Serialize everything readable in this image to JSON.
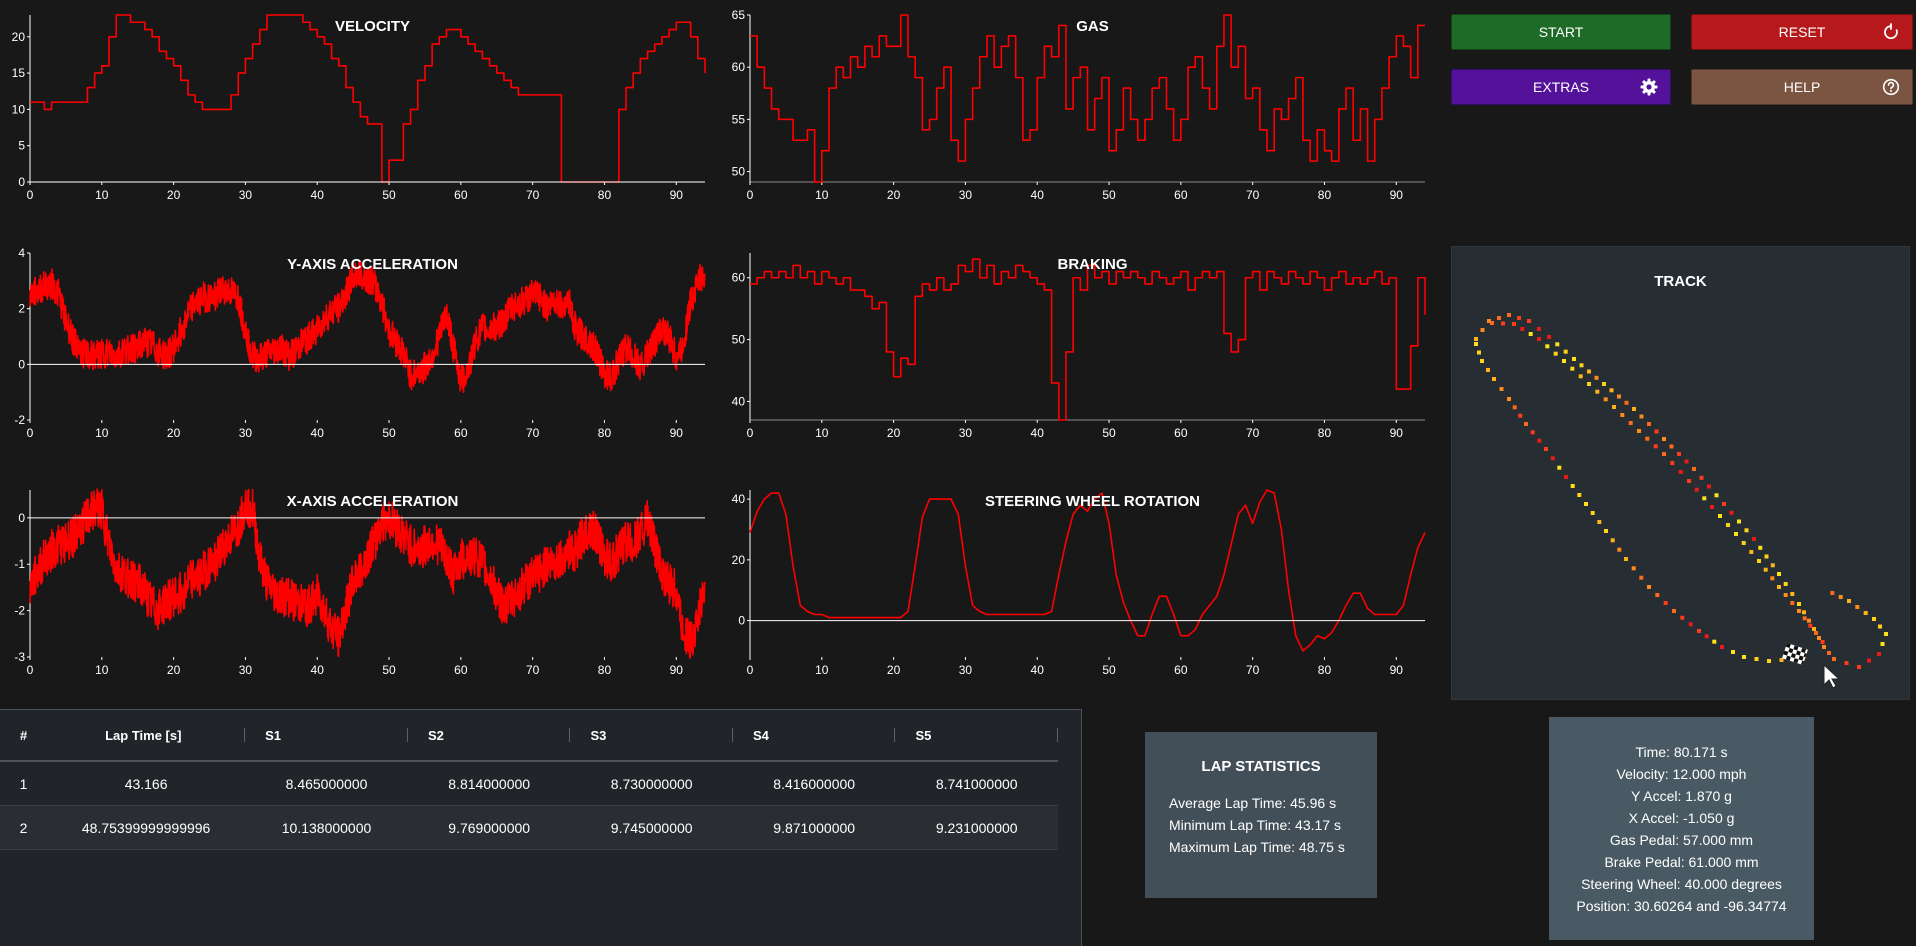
{
  "colors": {
    "background": "#181818",
    "series": "#ff0000",
    "axis": "#ffffff",
    "start": "#1e6b27",
    "reset": "#b5191b",
    "extras": "#54129a",
    "help": "#7b5442"
  },
  "buttons": {
    "start": "START",
    "reset": "RESET",
    "extras": "EXTRAS",
    "help": "HELP",
    "reset_icon": "reload-icon",
    "extras_icon": "gear-icon",
    "help_icon": "question-circle-icon"
  },
  "chart_data": [
    {
      "id": "velocity",
      "type": "line",
      "title": "VELOCITY",
      "xlim": [
        0,
        94
      ],
      "ylim": [
        0,
        23
      ],
      "xticks": [
        0,
        10,
        20,
        30,
        40,
        50,
        60,
        70,
        80,
        90
      ],
      "yticks": [
        0,
        5,
        10,
        15,
        20
      ],
      "zero_line": true,
      "step": true,
      "noise": 0,
      "x": [
        0,
        1,
        2,
        3,
        4,
        5,
        6,
        7,
        8,
        9,
        10,
        11,
        12,
        13,
        14,
        15,
        16,
        17,
        18,
        19,
        20,
        21,
        22,
        23,
        24,
        25,
        26,
        27,
        28,
        29,
        30,
        31,
        32,
        33,
        34,
        35,
        36,
        37,
        38,
        39,
        40,
        41,
        42,
        43,
        44,
        45,
        46,
        47,
        48,
        49,
        50,
        51,
        52,
        53,
        54,
        55,
        56,
        57,
        58,
        59,
        60,
        61,
        62,
        63,
        64,
        65,
        66,
        67,
        68,
        69,
        70,
        71,
        72,
        73,
        74,
        75,
        76,
        77,
        78,
        79,
        80,
        81,
        82,
        83,
        84,
        85,
        86,
        87,
        88,
        89,
        90,
        91,
        92,
        93,
        94
      ],
      "y": [
        11,
        11,
        10,
        11,
        11,
        11,
        11,
        11,
        13,
        15,
        16,
        20,
        23,
        23,
        22,
        22,
        21,
        20,
        18,
        17,
        16,
        14,
        12,
        11,
        10,
        10,
        10,
        10,
        12,
        15,
        17,
        19,
        21,
        23,
        23,
        23,
        23,
        23,
        22,
        21,
        20,
        19,
        17,
        16,
        13,
        11,
        9,
        8,
        8,
        0,
        3,
        3,
        8,
        10,
        14,
        16,
        19,
        20,
        21,
        21,
        20,
        19,
        18,
        17,
        16,
        15,
        14,
        13,
        12,
        12,
        12,
        12,
        12,
        12,
        0,
        0,
        0,
        0,
        0,
        0,
        0,
        0,
        10,
        13,
        15,
        17,
        18,
        19,
        20,
        21,
        22,
        22,
        20,
        17,
        15
      ]
    },
    {
      "id": "gas",
      "type": "line",
      "title": "GAS",
      "xlim": [
        0,
        94
      ],
      "ylim": [
        49,
        65
      ],
      "xticks": [
        0,
        10,
        20,
        30,
        40,
        50,
        60,
        70,
        80,
        90
      ],
      "yticks": [
        50,
        55,
        60,
        65
      ],
      "zero_line": false,
      "step": true,
      "noise": 0,
      "x": [
        0,
        1,
        2,
        3,
        4,
        5,
        6,
        7,
        8,
        9,
        10,
        11,
        12,
        13,
        14,
        15,
        16,
        17,
        18,
        19,
        20,
        21,
        22,
        23,
        24,
        25,
        26,
        27,
        28,
        29,
        30,
        31,
        32,
        33,
        34,
        35,
        36,
        37,
        38,
        39,
        40,
        41,
        42,
        43,
        44,
        45,
        46,
        47,
        48,
        49,
        50,
        51,
        52,
        53,
        54,
        55,
        56,
        57,
        58,
        59,
        60,
        61,
        62,
        63,
        64,
        65,
        66,
        67,
        68,
        69,
        70,
        71,
        72,
        73,
        74,
        75,
        76,
        77,
        78,
        79,
        80,
        81,
        82,
        83,
        84,
        85,
        86,
        87,
        88,
        89,
        90,
        91,
        92,
        93,
        94
      ],
      "y": [
        63,
        60,
        58,
        56,
        55,
        55,
        53,
        53,
        54,
        49,
        52,
        58,
        60,
        59,
        61,
        60,
        62,
        61,
        63,
        62,
        62,
        65,
        61,
        59,
        54,
        55,
        58,
        60,
        53,
        51,
        55,
        58,
        61,
        63,
        60,
        62,
        63,
        59,
        53,
        54,
        59,
        62,
        61,
        64,
        56,
        59,
        60,
        54,
        57,
        59,
        52,
        54,
        58,
        55,
        53,
        55,
        58,
        59,
        56,
        53,
        55,
        60,
        61,
        58,
        56,
        62,
        65,
        60,
        62,
        57,
        58,
        54,
        52,
        56,
        55,
        57,
        59,
        53,
        51,
        54,
        52,
        51,
        56,
        58,
        53,
        56,
        51,
        55,
        58,
        61,
        63,
        62,
        59,
        64,
        64
      ]
    },
    {
      "id": "y-accel",
      "type": "line",
      "title": "Y-AXIS ACCELERATION",
      "xlim": [
        0,
        94
      ],
      "ylim": [
        -2,
        4
      ],
      "xticks": [
        0,
        10,
        20,
        30,
        40,
        50,
        60,
        70,
        80,
        90
      ],
      "yticks": [
        -2,
        0,
        2,
        4
      ],
      "zero_line": true,
      "step": false,
      "noise": 0.55,
      "x": [
        0,
        1,
        2,
        3,
        4,
        5,
        6,
        7,
        8,
        9,
        10,
        11,
        12,
        13,
        14,
        15,
        16,
        17,
        18,
        19,
        20,
        21,
        22,
        23,
        24,
        25,
        26,
        27,
        28,
        29,
        30,
        31,
        32,
        33,
        34,
        35,
        36,
        37,
        38,
        39,
        40,
        41,
        42,
        43,
        44,
        45,
        46,
        47,
        48,
        49,
        50,
        51,
        52,
        53,
        54,
        55,
        56,
        57,
        58,
        59,
        60,
        61,
        62,
        63,
        64,
        65,
        66,
        67,
        68,
        69,
        70,
        71,
        72,
        73,
        74,
        75,
        76,
        77,
        78,
        79,
        80,
        81,
        82,
        83,
        84,
        85,
        86,
        87,
        88,
        89,
        90,
        91,
        92,
        93,
        94
      ],
      "y": [
        2.5,
        2.6,
        2.8,
        2.9,
        2.5,
        1.6,
        0.9,
        0.5,
        0.3,
        0.3,
        0.4,
        0.4,
        0.3,
        0.5,
        0.6,
        0.6,
        0.8,
        0.7,
        0.4,
        0.3,
        0.6,
        1.2,
        1.8,
        2.2,
        2.4,
        2.4,
        2.5,
        2.7,
        2.6,
        2.4,
        1.2,
        0.3,
        0.2,
        0.4,
        0.5,
        0.6,
        0.3,
        0.5,
        0.8,
        1.0,
        1.3,
        1.6,
        1.9,
        2.0,
        2.6,
        3.1,
        3.3,
        3.1,
        2.9,
        2.2,
        1.2,
        0.8,
        0.4,
        -0.4,
        -0.3,
        -0.1,
        0.3,
        1.0,
        1.8,
        0.6,
        -0.6,
        -0.2,
        0.8,
        1.3,
        1.2,
        1.4,
        1.6,
        2.0,
        2.2,
        2.3,
        2.5,
        2.4,
        2.0,
        2.3,
        2.2,
        2.3,
        1.3,
        1.0,
        0.8,
        0.4,
        -0.3,
        -0.5,
        0.2,
        0.6,
        0.3,
        -0.1,
        0.4,
        0.8,
        1.3,
        1.0,
        0.2,
        0.8,
        2.2,
        3.0,
        3.2
      ]
    },
    {
      "id": "braking",
      "type": "line",
      "title": "BRAKING",
      "xlim": [
        0,
        94
      ],
      "ylim": [
        37,
        64
      ],
      "xticks": [
        0,
        10,
        20,
        30,
        40,
        50,
        60,
        70,
        80,
        90
      ],
      "yticks": [
        40,
        50,
        60
      ],
      "zero_line": false,
      "step": true,
      "noise": 0,
      "x": [
        0,
        1,
        2,
        3,
        4,
        5,
        6,
        7,
        8,
        9,
        10,
        11,
        12,
        13,
        14,
        15,
        16,
        17,
        18,
        19,
        20,
        21,
        22,
        23,
        24,
        25,
        26,
        27,
        28,
        29,
        30,
        31,
        32,
        33,
        34,
        35,
        36,
        37,
        38,
        39,
        40,
        41,
        42,
        43,
        44,
        45,
        46,
        47,
        48,
        49,
        50,
        51,
        52,
        53,
        54,
        55,
        56,
        57,
        58,
        59,
        60,
        61,
        62,
        63,
        64,
        65,
        66,
        67,
        68,
        69,
        70,
        71,
        72,
        73,
        74,
        75,
        76,
        77,
        78,
        79,
        80,
        81,
        82,
        83,
        84,
        85,
        86,
        87,
        88,
        89,
        90,
        91,
        92,
        93,
        94
      ],
      "y": [
        59,
        60,
        61,
        60,
        61,
        60,
        62,
        60,
        61,
        59,
        61,
        60,
        59,
        60,
        58,
        58,
        57,
        55,
        56,
        48,
        44,
        47,
        46,
        57,
        59,
        58,
        60,
        58,
        59,
        62,
        61,
        63,
        60,
        62,
        59,
        61,
        60,
        62,
        61,
        60,
        59,
        58,
        43,
        37,
        48,
        60,
        58,
        62,
        60,
        61,
        59,
        61,
        60,
        61,
        60,
        59,
        61,
        60,
        59,
        60,
        61,
        58,
        60,
        61,
        60,
        61,
        51,
        48,
        50,
        60,
        61,
        58,
        61,
        60,
        59,
        61,
        60,
        59,
        61,
        60,
        58,
        60,
        61,
        59,
        60,
        59,
        60,
        61,
        59,
        60,
        42,
        42,
        49,
        60,
        54
      ]
    },
    {
      "id": "x-accel",
      "type": "line",
      "title": "X-AXIS ACCELERATION",
      "xlim": [
        0,
        94
      ],
      "ylim": [
        -3,
        0.6
      ],
      "xticks": [
        0,
        10,
        20,
        30,
        40,
        50,
        60,
        70,
        80,
        90
      ],
      "yticks": [
        -3,
        -2,
        -1,
        0
      ],
      "zero_line": true,
      "step": false,
      "noise": 0.45,
      "x": [
        0,
        1,
        2,
        3,
        4,
        5,
        6,
        7,
        8,
        9,
        10,
        11,
        12,
        13,
        14,
        15,
        16,
        17,
        18,
        19,
        20,
        21,
        22,
        23,
        24,
        25,
        26,
        27,
        28,
        29,
        30,
        31,
        32,
        33,
        34,
        35,
        36,
        37,
        38,
        39,
        40,
        41,
        42,
        43,
        44,
        45,
        46,
        47,
        48,
        49,
        50,
        51,
        52,
        53,
        54,
        55,
        56,
        57,
        58,
        59,
        60,
        61,
        62,
        63,
        64,
        65,
        66,
        67,
        68,
        69,
        70,
        71,
        72,
        73,
        74,
        75,
        76,
        77,
        78,
        79,
        80,
        81,
        82,
        83,
        84,
        85,
        86,
        87,
        88,
        89,
        90,
        91,
        92,
        93,
        94
      ],
      "y": [
        -1.5,
        -1.2,
        -0.9,
        -0.7,
        -0.6,
        -0.5,
        -0.4,
        -0.2,
        0.0,
        0.2,
        0.2,
        -0.6,
        -1.1,
        -1.2,
        -1.3,
        -1.4,
        -1.6,
        -1.9,
        -2.0,
        -1.8,
        -1.7,
        -1.6,
        -1.4,
        -1.3,
        -1.2,
        -1.0,
        -0.9,
        -0.6,
        -0.4,
        -0.2,
        0.3,
        0.2,
        -0.9,
        -1.4,
        -1.6,
        -1.7,
        -1.7,
        -1.8,
        -1.9,
        -1.9,
        -1.6,
        -2.0,
        -2.4,
        -2.6,
        -1.9,
        -1.4,
        -1.1,
        -0.8,
        -0.5,
        -0.1,
        0.0,
        -0.2,
        -0.4,
        -0.6,
        -0.7,
        -0.6,
        -0.5,
        -0.6,
        -0.9,
        -1.2,
        -0.9,
        -0.8,
        -0.8,
        -1.0,
        -1.3,
        -1.6,
        -1.9,
        -1.8,
        -1.6,
        -1.4,
        -1.3,
        -1.2,
        -1.0,
        -1.0,
        -0.8,
        -0.7,
        -0.7,
        -0.4,
        -0.2,
        -0.4,
        -0.8,
        -1.0,
        -0.7,
        -0.5,
        -0.6,
        -0.3,
        0.0,
        -0.6,
        -1.2,
        -1.4,
        -1.6,
        -2.4,
        -2.7,
        -2.2,
        -1.4
      ]
    },
    {
      "id": "steering",
      "type": "line",
      "title": "STEERING WHEEL ROTATION",
      "xlim": [
        0,
        94
      ],
      "ylim": [
        -12,
        43
      ],
      "xticks": [
        0,
        10,
        20,
        30,
        40,
        50,
        60,
        70,
        80,
        90
      ],
      "yticks": [
        0,
        20,
        40
      ],
      "zero_line": true,
      "step": false,
      "noise": 0,
      "x": [
        0,
        1,
        2,
        3,
        4,
        5,
        6,
        7,
        8,
        9,
        10,
        11,
        12,
        13,
        14,
        15,
        16,
        17,
        18,
        19,
        20,
        21,
        22,
        23,
        24,
        25,
        26,
        27,
        28,
        29,
        30,
        31,
        32,
        33,
        34,
        35,
        36,
        37,
        38,
        39,
        40,
        41,
        42,
        43,
        44,
        45,
        46,
        47,
        48,
        49,
        50,
        51,
        52,
        53,
        54,
        55,
        56,
        57,
        58,
        59,
        60,
        61,
        62,
        63,
        64,
        65,
        66,
        67,
        68,
        69,
        70,
        71,
        72,
        73,
        74,
        75,
        76,
        77,
        78,
        79,
        80,
        81,
        82,
        83,
        84,
        85,
        86,
        87,
        88,
        89,
        90,
        91,
        92,
        93,
        94
      ],
      "y": [
        29,
        36,
        40,
        42,
        42,
        35,
        18,
        5,
        3,
        2,
        2,
        1,
        1,
        1,
        1,
        1,
        1,
        1,
        1,
        1,
        1,
        1,
        3,
        18,
        34,
        40,
        40,
        40,
        40,
        35,
        18,
        5,
        3,
        2,
        2,
        2,
        2,
        2,
        2,
        2,
        2,
        2,
        3,
        15,
        26,
        35,
        38,
        36,
        40,
        42,
        32,
        15,
        6,
        0,
        -5,
        -5,
        2,
        8,
        8,
        2,
        -5,
        -5,
        -3,
        2,
        5,
        8,
        15,
        25,
        35,
        38,
        32,
        39,
        43,
        42,
        30,
        10,
        -5,
        -10,
        -8,
        -5,
        -6,
        -4,
        0,
        5,
        9,
        9,
        4,
        2,
        2,
        2,
        2,
        5,
        15,
        24,
        29
      ]
    }
  ],
  "track": {
    "title": "TRACK",
    "start_flag_icon": "checkered-flag-icon",
    "car_icon": "cursor-arrow-icon"
  },
  "laps": {
    "headers": [
      "#",
      "Lap Time [s]",
      "S1",
      "S2",
      "S3",
      "S4",
      "S5"
    ],
    "rows": [
      [
        "1",
        "43.166",
        "8.465000000",
        "8.814000000",
        "8.730000000",
        "8.416000000",
        "8.741000000"
      ],
      [
        "2",
        "48.75399999999996",
        "10.138000000",
        "9.769000000",
        "9.745000000",
        "9.871000000",
        "9.231000000"
      ]
    ]
  },
  "stats": {
    "title": "LAP STATISTICS",
    "average": "Average Lap Time: 45.96 s",
    "minimum": "Minimum Lap Time: 43.17 s",
    "maximum": "Maximum Lap Time: 48.75 s"
  },
  "telemetry": {
    "time": "Time: 80.171 s",
    "velocity": "Velocity: 12.000 mph",
    "y_accel": "Y Accel: 1.870 g",
    "x_accel": "X Accel: -1.050 g",
    "gas": "Gas Pedal: 57.000 mm",
    "brake": "Brake Pedal: 61.000 mm",
    "steering": "Steering Wheel: 40.000 degrees",
    "position": "Position: 30.60264 and -96.34774"
  }
}
